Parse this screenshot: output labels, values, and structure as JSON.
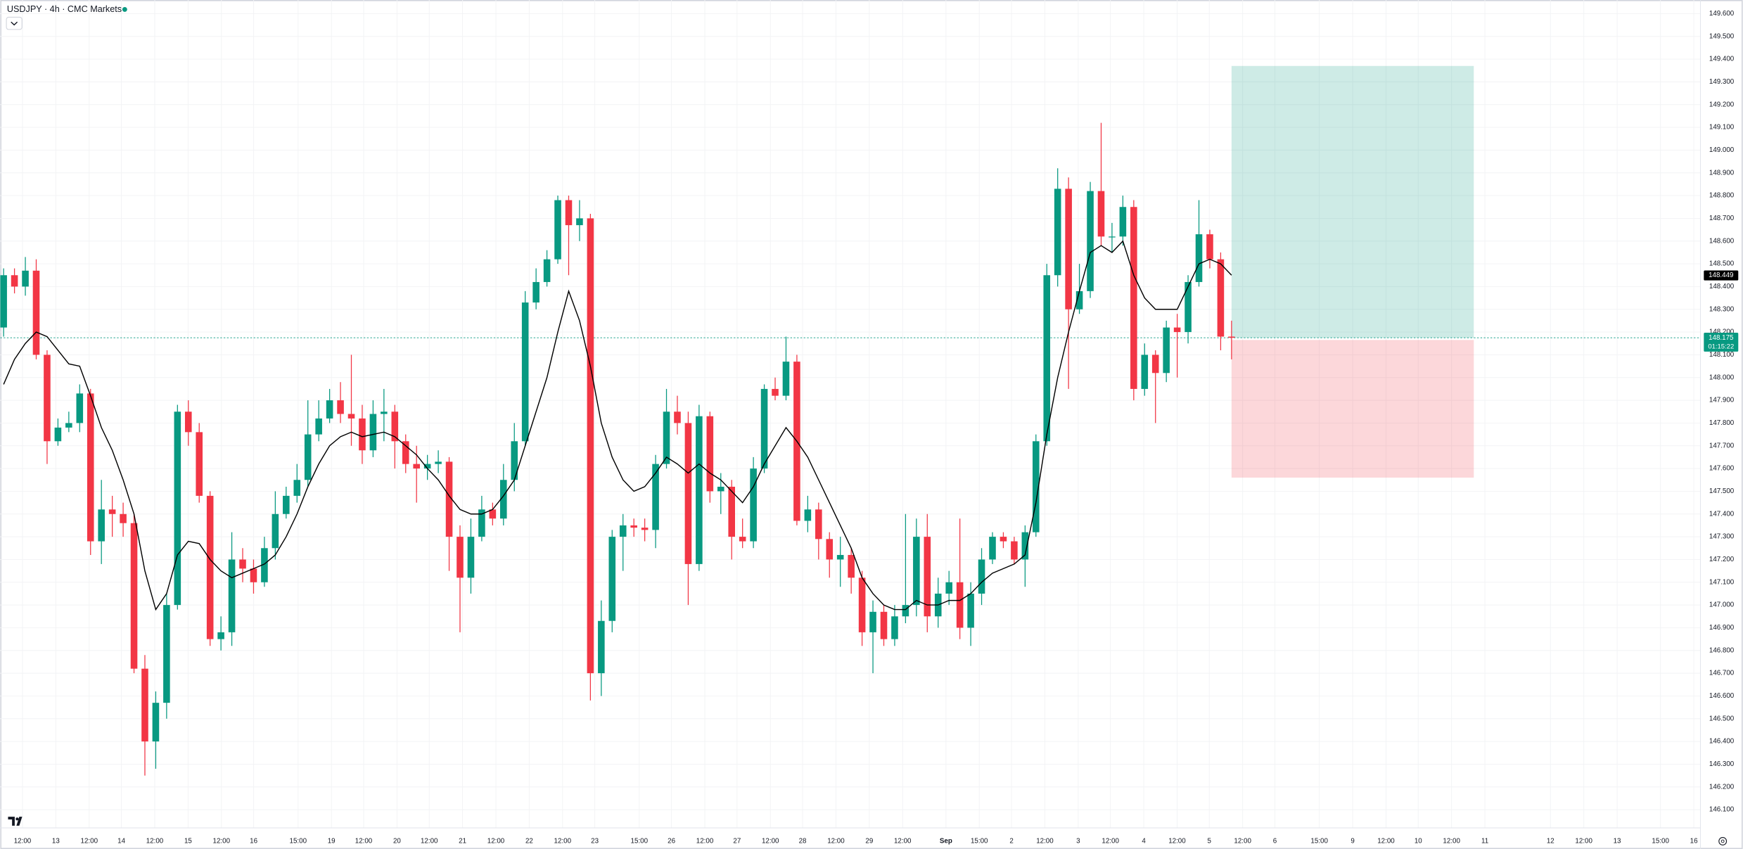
{
  "chart_data": {
    "type": "candlestick",
    "title": "USDJPY · 4h · CMC Markets",
    "up_color": "#089981",
    "down_color": "#f23645",
    "ma_color": "#000000",
    "grid": true,
    "ylim": [
      146.02,
      149.66
    ],
    "yticks": [
      {
        "value": 149.6,
        "label": "149.600"
      },
      {
        "value": 149.5,
        "label": "149.500"
      },
      {
        "value": 149.4,
        "label": "149.400"
      },
      {
        "value": 149.3,
        "label": "149.300"
      },
      {
        "value": 149.2,
        "label": "149.200"
      },
      {
        "value": 149.1,
        "label": "149.100"
      },
      {
        "value": 149.0,
        "label": "149.000"
      },
      {
        "value": 148.9,
        "label": "148.900"
      },
      {
        "value": 148.8,
        "label": "148.800"
      },
      {
        "value": 148.7,
        "label": "148.700"
      },
      {
        "value": 148.6,
        "label": "148.600"
      },
      {
        "value": 148.5,
        "label": "148.500"
      },
      {
        "value": 148.4,
        "label": "148.400"
      },
      {
        "value": 148.3,
        "label": "148.300"
      },
      {
        "value": 148.2,
        "label": "148.200"
      },
      {
        "value": 148.1,
        "label": "148.100"
      },
      {
        "value": 148.0,
        "label": "148.000"
      },
      {
        "value": 147.9,
        "label": "147.900"
      },
      {
        "value": 147.8,
        "label": "147.800"
      },
      {
        "value": 147.7,
        "label": "147.700"
      },
      {
        "value": 147.6,
        "label": "147.600"
      },
      {
        "value": 147.5,
        "label": "147.500"
      },
      {
        "value": 147.4,
        "label": "147.400"
      },
      {
        "value": 147.3,
        "label": "147.300"
      },
      {
        "value": 147.2,
        "label": "147.200"
      },
      {
        "value": 147.1,
        "label": "147.100"
      },
      {
        "value": 147.0,
        "label": "147.000"
      },
      {
        "value": 146.9,
        "label": "146.900"
      },
      {
        "value": 146.8,
        "label": "146.800"
      },
      {
        "value": 146.7,
        "label": "146.700"
      },
      {
        "value": 146.6,
        "label": "146.600"
      },
      {
        "value": 146.5,
        "label": "146.500"
      },
      {
        "value": 146.4,
        "label": "146.400"
      },
      {
        "value": 146.3,
        "label": "146.300"
      },
      {
        "value": 146.2,
        "label": "146.200"
      },
      {
        "value": 146.1,
        "label": "146.100"
      }
    ],
    "x_labels": [
      "12:00",
      "13",
      "12:00",
      "14",
      "12:00",
      "15",
      "12:00",
      "16",
      "15:00",
      "19",
      "12:00",
      "20",
      "12:00",
      "21",
      "12:00",
      "22",
      "12:00",
      "23",
      "15:00",
      "26",
      "12:00",
      "27",
      "12:00",
      "28",
      "12:00",
      "29",
      "12:00",
      "Sep",
      "15:00",
      "2",
      "12:00",
      "3",
      "12:00",
      "4",
      "12:00",
      "5",
      "12:00",
      "6",
      "15:00",
      "9",
      "12:00",
      "10",
      "12:00",
      "11",
      "12",
      "12:00",
      "13",
      "15:00",
      "16"
    ],
    "open": [
      148.22,
      148.45,
      148.4,
      148.47,
      148.1,
      147.72,
      147.78,
      147.8,
      147.93,
      147.28,
      147.42,
      147.4,
      147.36,
      146.72,
      146.4,
      146.57,
      147.0,
      147.85,
      147.76,
      147.48,
      146.85,
      146.88,
      147.2,
      147.16,
      147.1,
      147.25,
      147.4,
      147.48,
      147.55,
      147.75,
      147.82,
      147.9,
      147.84,
      147.82,
      147.68,
      147.84,
      147.85,
      147.72,
      147.62,
      147.6,
      147.62,
      147.63,
      147.3,
      147.12,
      147.3,
      147.42,
      147.38,
      147.55,
      147.72,
      148.33,
      148.42,
      148.52,
      148.78,
      148.67,
      148.7,
      146.7,
      146.93,
      147.3,
      147.35,
      147.34,
      147.33,
      147.62,
      147.85,
      147.8,
      147.18,
      147.83,
      147.5,
      147.52,
      147.3,
      147.28,
      147.6,
      147.95,
      147.92,
      148.07,
      147.37,
      147.42,
      147.29,
      147.2,
      147.22,
      147.12,
      146.88,
      146.97,
      146.85,
      146.95,
      147.0,
      147.3,
      146.95,
      147.05,
      147.1,
      146.9,
      147.05,
      147.2,
      147.3,
      147.28,
      147.2,
      147.32,
      147.72,
      148.45,
      148.83,
      148.3,
      148.38,
      148.82,
      148.62,
      148.62,
      148.75,
      147.95,
      148.1,
      148.02,
      148.22,
      148.2,
      148.42,
      148.63,
      148.52,
      148.18
    ],
    "high": [
      148.48,
      148.48,
      148.53,
      148.52,
      148.12,
      147.82,
      147.85,
      147.97,
      147.95,
      147.55,
      147.48,
      147.45,
      147.4,
      146.78,
      146.62,
      147.05,
      147.88,
      147.9,
      147.8,
      147.5,
      146.95,
      147.32,
      147.25,
      147.2,
      147.3,
      147.5,
      147.52,
      147.62,
      147.9,
      147.9,
      147.95,
      147.98,
      148.1,
      147.88,
      147.9,
      147.95,
      147.88,
      147.75,
      147.7,
      147.66,
      147.68,
      147.65,
      147.35,
      147.38,
      147.48,
      147.45,
      147.62,
      147.8,
      148.38,
      148.48,
      148.56,
      148.8,
      148.8,
      148.78,
      148.72,
      147.02,
      147.33,
      147.4,
      147.38,
      147.38,
      147.66,
      147.95,
      147.92,
      147.85,
      147.88,
      147.85,
      147.58,
      147.55,
      147.38,
      147.65,
      147.97,
      148.0,
      148.18,
      148.1,
      147.48,
      147.45,
      147.32,
      147.3,
      147.25,
      147.15,
      147.02,
      147.0,
      147.0,
      147.4,
      147.38,
      147.4,
      147.12,
      147.15,
      147.38,
      147.1,
      147.25,
      147.32,
      147.32,
      147.3,
      147.35,
      147.75,
      148.5,
      148.92,
      148.88,
      148.5,
      148.86,
      149.12,
      148.68,
      148.8,
      148.78,
      148.15,
      148.12,
      148.25,
      148.28,
      148.45,
      148.78,
      148.65,
      148.55,
      148.25
    ],
    "low": [
      148.18,
      148.37,
      148.36,
      148.08,
      147.62,
      147.7,
      147.76,
      147.76,
      147.22,
      147.18,
      147.3,
      147.3,
      146.7,
      146.25,
      146.28,
      146.5,
      146.98,
      147.7,
      147.45,
      146.82,
      146.8,
      146.82,
      147.1,
      147.05,
      147.08,
      147.2,
      147.38,
      147.45,
      147.52,
      147.72,
      147.8,
      147.8,
      147.7,
      147.62,
      147.65,
      147.72,
      147.6,
      147.58,
      147.45,
      147.55,
      147.58,
      147.15,
      146.88,
      147.05,
      147.28,
      147.35,
      147.35,
      147.5,
      147.7,
      148.3,
      148.4,
      148.5,
      148.45,
      148.6,
      146.58,
      146.6,
      146.88,
      147.15,
      147.3,
      147.28,
      147.25,
      147.6,
      147.75,
      147.0,
      147.15,
      147.45,
      147.4,
      147.2,
      147.25,
      147.25,
      147.58,
      147.9,
      147.9,
      147.35,
      147.32,
      147.2,
      147.12,
      147.08,
      147.05,
      146.82,
      146.7,
      146.82,
      146.82,
      146.92,
      146.95,
      146.88,
      146.9,
      147.0,
      146.85,
      146.82,
      147.0,
      147.18,
      147.25,
      147.18,
      147.08,
      147.3,
      147.7,
      148.4,
      147.95,
      148.28,
      148.35,
      148.58,
      148.55,
      148.58,
      147.9,
      147.92,
      147.8,
      147.98,
      148.0,
      148.15,
      148.4,
      148.48,
      148.12,
      148.08
    ],
    "close": [
      148.45,
      148.4,
      148.47,
      148.1,
      147.72,
      147.78,
      147.8,
      147.93,
      147.28,
      147.42,
      147.4,
      147.36,
      146.72,
      146.4,
      146.57,
      147.0,
      147.85,
      147.76,
      147.48,
      146.85,
      146.88,
      147.2,
      147.16,
      147.1,
      147.25,
      147.4,
      147.48,
      147.55,
      147.75,
      147.82,
      147.9,
      147.84,
      147.82,
      147.68,
      147.84,
      147.85,
      147.72,
      147.62,
      147.6,
      147.62,
      147.63,
      147.3,
      147.12,
      147.3,
      147.42,
      147.38,
      147.55,
      147.72,
      148.33,
      148.42,
      148.52,
      148.78,
      148.67,
      148.7,
      146.7,
      146.93,
      147.3,
      147.35,
      147.34,
      147.33,
      147.62,
      147.85,
      147.8,
      147.18,
      147.83,
      147.5,
      147.52,
      147.3,
      147.28,
      147.6,
      147.95,
      147.92,
      148.07,
      147.37,
      147.42,
      147.29,
      147.2,
      147.22,
      147.12,
      146.88,
      146.97,
      146.85,
      146.95,
      147.0,
      147.3,
      146.95,
      147.05,
      147.1,
      146.9,
      147.05,
      147.2,
      147.3,
      147.28,
      147.2,
      147.32,
      147.72,
      148.45,
      148.83,
      148.3,
      148.38,
      148.82,
      148.62,
      148.62,
      148.75,
      147.95,
      148.1,
      148.02,
      148.22,
      148.2,
      148.42,
      148.63,
      148.52,
      148.18,
      148.175
    ],
    "ma": [
      147.97,
      148.08,
      148.15,
      148.2,
      148.18,
      148.12,
      148.06,
      148.05,
      147.92,
      147.78,
      147.68,
      147.55,
      147.4,
      147.15,
      146.98,
      147.05,
      147.22,
      147.28,
      147.27,
      147.2,
      147.15,
      147.12,
      147.14,
      147.16,
      147.18,
      147.22,
      147.3,
      147.4,
      147.52,
      147.62,
      147.7,
      147.74,
      147.76,
      147.74,
      147.75,
      147.76,
      147.74,
      147.7,
      147.66,
      147.6,
      147.55,
      147.48,
      147.42,
      147.4,
      147.4,
      147.42,
      147.48,
      147.55,
      147.7,
      147.85,
      148.0,
      148.2,
      148.38,
      148.25,
      148.05,
      147.8,
      147.65,
      147.55,
      147.5,
      147.52,
      147.58,
      147.65,
      147.62,
      147.58,
      147.62,
      147.58,
      147.55,
      147.5,
      147.45,
      147.52,
      147.62,
      147.7,
      147.78,
      147.72,
      147.65,
      147.55,
      147.45,
      147.35,
      147.25,
      147.12,
      147.05,
      147.0,
      146.98,
      146.98,
      147.02,
      147.0,
      147.0,
      147.02,
      147.02,
      147.05,
      147.1,
      147.14,
      147.16,
      147.18,
      147.22,
      147.45,
      147.75,
      148.0,
      148.2,
      148.38,
      148.55,
      148.58,
      148.55,
      148.6,
      148.45,
      148.35,
      148.3,
      148.3,
      148.3,
      148.4,
      148.5,
      148.52,
      148.5,
      148.45
    ],
    "ma_last": {
      "value": 148.449,
      "label": "148.449"
    },
    "last_price": {
      "value": 148.175,
      "label": "148.175"
    },
    "countdown": "01:15:22",
    "position": {
      "target": 149.37,
      "entry": 148.175,
      "stop": 147.56
    }
  }
}
